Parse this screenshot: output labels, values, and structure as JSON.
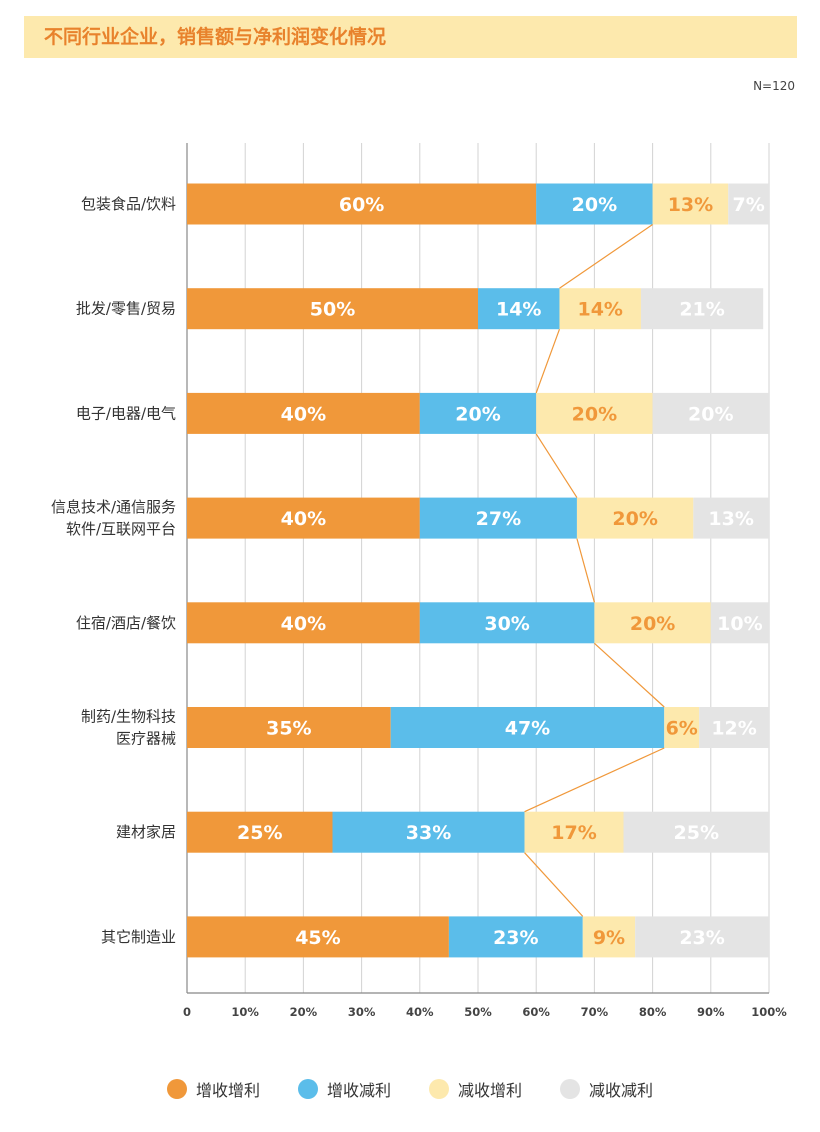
{
  "title": "不同行业企业，销售额与净利润变化情况",
  "sample_note": "N=120",
  "colors": {
    "title_bg": "#fde9ad",
    "title_text": "#e8822c",
    "series": [
      "#f0983a",
      "#5bbdea",
      "#fde9ad",
      "#e4e4e4"
    ],
    "label_text": [
      "#ffffff",
      "#ffffff",
      "#f0983a",
      "#ffffff"
    ],
    "connector": "#f0983a",
    "grid": "#d3d3d3"
  },
  "chart_data": {
    "type": "bar",
    "orientation": "horizontal",
    "stacked": true,
    "categories": [
      [
        "包装食品/饮料"
      ],
      [
        "批发/零售/贸易"
      ],
      [
        "电子/电器/电气"
      ],
      [
        "信息技术/通信服务",
        "软件/互联网平台"
      ],
      [
        "住宿/酒店/餐饮"
      ],
      [
        "制药/生物科技",
        "医疗器械"
      ],
      [
        "建材家居"
      ],
      [
        "其它制造业"
      ]
    ],
    "series": [
      {
        "name": "增收增利",
        "values": [
          60,
          50,
          40,
          40,
          40,
          35,
          25,
          45
        ]
      },
      {
        "name": "增收减利",
        "values": [
          20,
          14,
          20,
          27,
          30,
          47,
          33,
          23
        ]
      },
      {
        "name": "减收增利",
        "values": [
          13,
          14,
          20,
          20,
          20,
          6,
          17,
          9
        ]
      },
      {
        "name": "减收减利",
        "values": [
          7,
          21,
          20,
          13,
          10,
          12,
          25,
          23
        ]
      }
    ],
    "xlim": [
      0,
      100
    ],
    "xticks": [
      "0",
      "10%",
      "20%",
      "30%",
      "40%",
      "50%",
      "60%",
      "70%",
      "80%",
      "90%",
      "100%"
    ],
    "value_suffix": "%",
    "grid": true,
    "legend_position": "bottom",
    "connector_line": "links the end of the 增收减利 segment across bars"
  },
  "legend": [
    {
      "label": "增收增利",
      "color": "#f0983a"
    },
    {
      "label": "增收减利",
      "color": "#5bbdea"
    },
    {
      "label": "减收增利",
      "color": "#fde9ad"
    },
    {
      "label": "减收减利",
      "color": "#e4e4e4"
    }
  ]
}
